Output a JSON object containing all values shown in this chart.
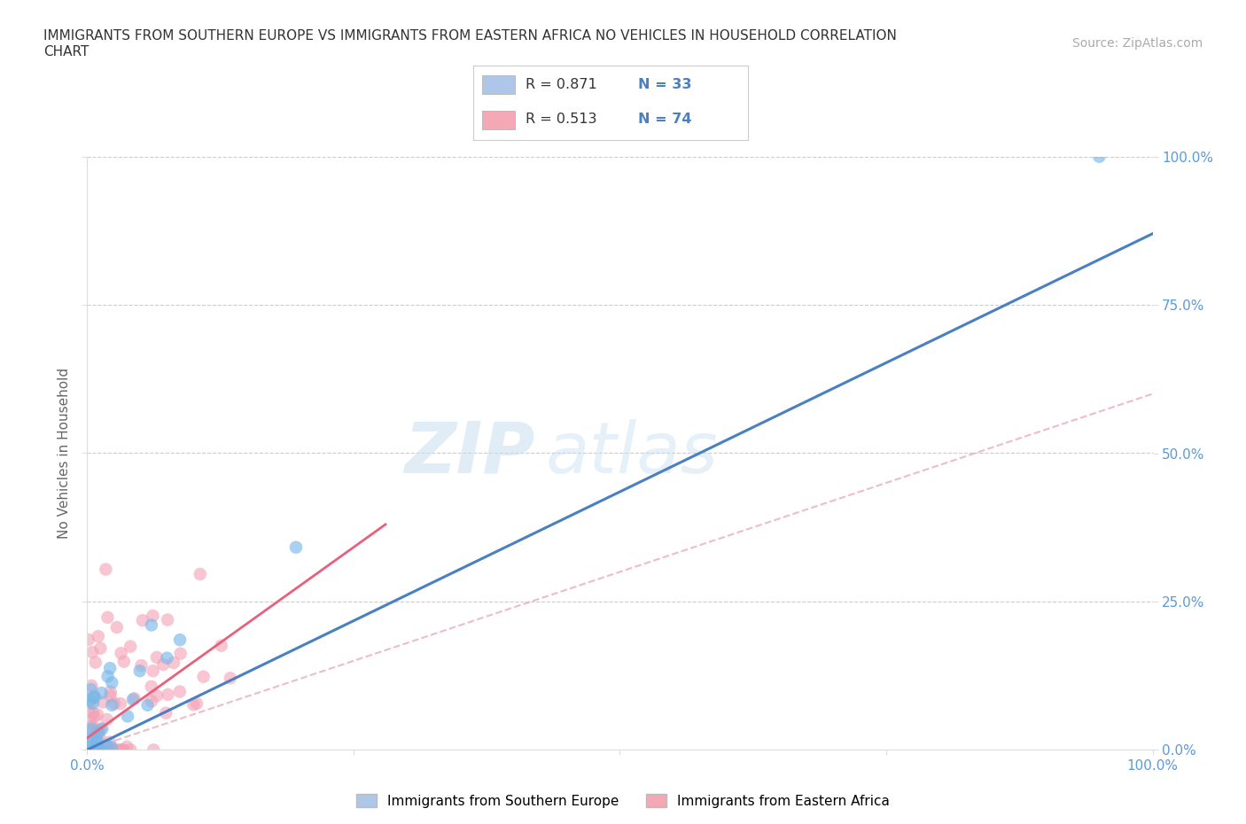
{
  "title_line1": "IMMIGRANTS FROM SOUTHERN EUROPE VS IMMIGRANTS FROM EASTERN AFRICA NO VEHICLES IN HOUSEHOLD CORRELATION",
  "title_line2": "CHART",
  "source_text": "Source: ZipAtlas.com",
  "ylabel": "No Vehicles in Household",
  "x_tick_labels": [
    "0.0%",
    "",
    "",
    "",
    "100.0%"
  ],
  "x_tick_positions": [
    0,
    25,
    50,
    75,
    100
  ],
  "y_tick_labels_right": [
    "0.0%",
    "25.0%",
    "50.0%",
    "75.0%",
    "100.0%"
  ],
  "y_tick_positions": [
    0,
    25,
    50,
    75,
    100
  ],
  "xlim": [
    0,
    100
  ],
  "ylim": [
    0,
    100
  ],
  "legend1_label": "Immigrants from Southern Europe",
  "legend2_label": "Immigrants from Eastern Africa",
  "legend_box_color1": "#aec6e8",
  "legend_box_color2": "#f4a7b5",
  "R1": 0.871,
  "N1": 33,
  "R2": 0.513,
  "N2": 74,
  "color1": "#7ab8e8",
  "color2": "#f4a0b5",
  "line_color1": "#4a7fc1",
  "line_color2": "#e8607a",
  "dash_color": "#e8a0b0",
  "watermark_zip": "ZIP",
  "watermark_atlas": "atlas",
  "background_color": "#ffffff",
  "blue_line_x0": 0,
  "blue_line_y0": 0,
  "blue_line_x1": 100,
  "blue_line_y1": 87,
  "pink_solid_x0": 0,
  "pink_solid_y0": 2,
  "pink_solid_x1": 28,
  "pink_solid_y1": 38,
  "pink_dash_x0": 0,
  "pink_dash_y0": 0,
  "pink_dash_x1": 100,
  "pink_dash_y1": 60
}
